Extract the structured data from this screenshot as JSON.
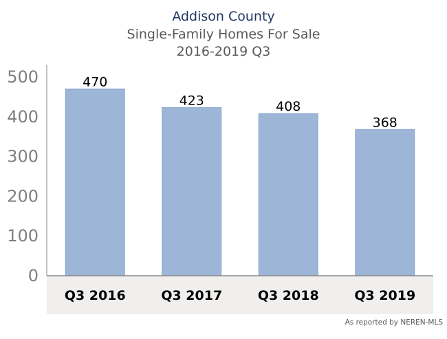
{
  "chart_data": {
    "type": "bar",
    "title": "Addison County",
    "subtitle": "Single-Family Homes For Sale",
    "subtitle2": "2016-2019 Q3",
    "categories": [
      "Q3 2016",
      "Q3 2017",
      "Q3 2018",
      "Q3 2019"
    ],
    "values": [
      470,
      423,
      408,
      368
    ],
    "data_labels": [
      "470",
      "423",
      "408",
      "368"
    ],
    "yticks": [
      "0",
      "100",
      "200",
      "300",
      "400",
      "500"
    ],
    "ylim": [
      0,
      500
    ],
    "xlabel": "",
    "ylabel": "",
    "grid": false,
    "legend": "none",
    "source": "As reported by NEREN-MLS",
    "colors": {
      "bar": "#9db5d6",
      "bar_edge": "#8aa5cc",
      "category_band": "#f0efee",
      "axis": "#888888",
      "title": "#1f3864",
      "subtitle": "#595959"
    }
  }
}
